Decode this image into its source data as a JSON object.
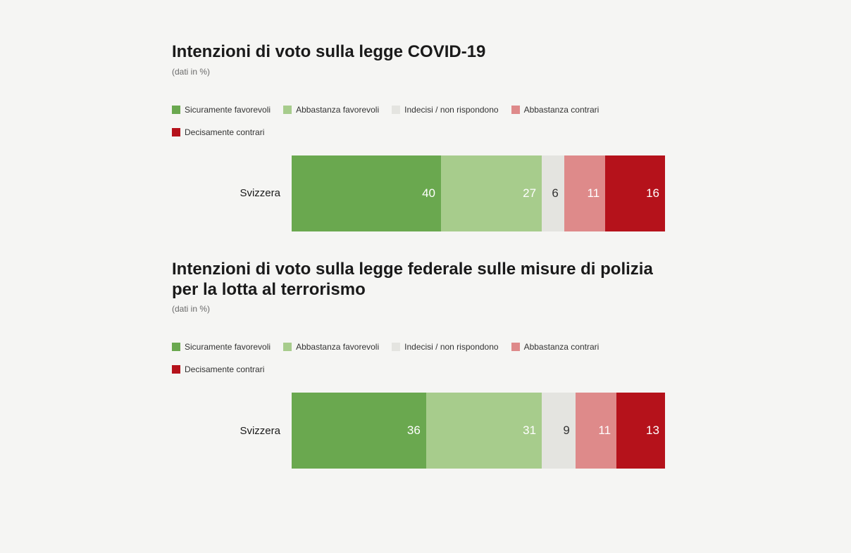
{
  "background_color": "#f5f5f3",
  "categories": [
    {
      "key": "sic_fav",
      "label": "Sicuramente favorevoli",
      "color": "#6aa84f"
    },
    {
      "key": "abb_fav",
      "label": "Abbastanza favorevoli",
      "color": "#a7cc8c"
    },
    {
      "key": "indecisi",
      "label": "Indecisi / non rispondono",
      "color": "#e4e4e0"
    },
    {
      "key": "abb_con",
      "label": "Abbastanza contrari",
      "color": "#de8a8a"
    },
    {
      "key": "dec_con",
      "label": "Decisamente contrari",
      "color": "#b5121b"
    }
  ],
  "dark_text_keys": [
    "indecisi"
  ],
  "grid_divisions": 10,
  "charts": [
    {
      "title": "Intenzioni di voto sulla legge COVID-19",
      "subtitle": "(dati in %)",
      "row_label": "Svizzera",
      "values": {
        "sic_fav": 40,
        "abb_fav": 27,
        "indecisi": 6,
        "abb_con": 11,
        "dec_con": 16
      }
    },
    {
      "title": "Intenzioni di voto sulla legge federale sulle misure di polizia per la lotta al terrorismo",
      "subtitle": "(dati in %)",
      "row_label": "Svizzera",
      "values": {
        "sic_fav": 36,
        "abb_fav": 31,
        "indecisi": 9,
        "abb_con": 11,
        "dec_con": 13
      }
    }
  ]
}
